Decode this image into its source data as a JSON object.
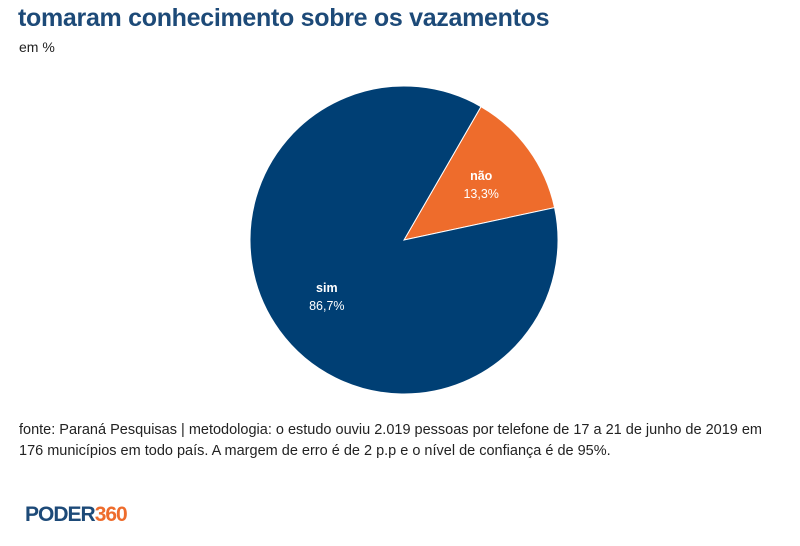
{
  "chart_data": {
    "type": "pie",
    "title": "tomaram conhecimento sobre os vazamentos",
    "subtitle": "em %",
    "slices": [
      {
        "label": "não",
        "value": 13.3,
        "value_label": "13,3%",
        "color": "#ee6c2c"
      },
      {
        "label": "sim",
        "value": 86.7,
        "value_label": "86,7%",
        "color": "#003f74"
      }
    ]
  },
  "footer": "fonte: Paraná Pesquisas | metodologia: o estudo ouviu 2.019 pessoas por telefone de 17 a 21 de junho de 2019 em 176 municípios em todo país. A margem de erro é de 2 p.p e o nível de confiança é de 95%.",
  "logo": {
    "part1": "PODER",
    "part2": "360"
  }
}
